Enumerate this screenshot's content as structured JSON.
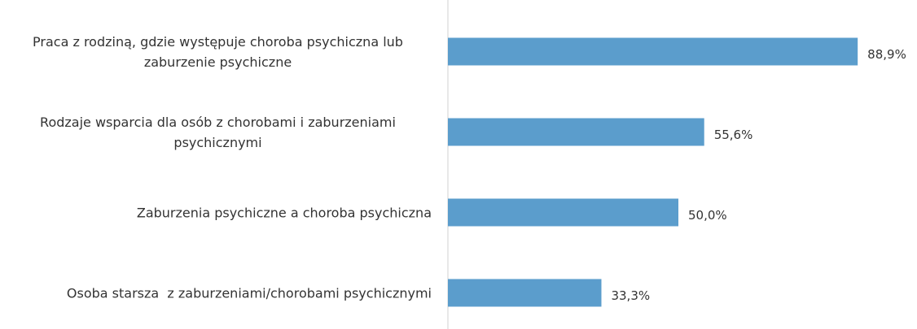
{
  "chart_data": {
    "type": "bar",
    "orientation": "horizontal",
    "categories": [
      "Praca z rodziną, gdzie występuje choroba psychiczna lub zaburzenie psychiczne",
      "Rodzaje wsparcia dla osób z chorobami i zaburzeniami psychicznymi",
      "Zaburzenia psychiczne a choroba psychiczna",
      "Osoba starsza  z zaburzeniami/chorobami psychicznymi"
    ],
    "values": [
      88.9,
      55.6,
      50.0,
      33.3
    ],
    "value_labels": [
      "88,9%",
      "55,6%",
      "50,0%",
      "33,3%"
    ],
    "color": "#5b9dcc",
    "xlim": [
      0,
      100
    ]
  }
}
